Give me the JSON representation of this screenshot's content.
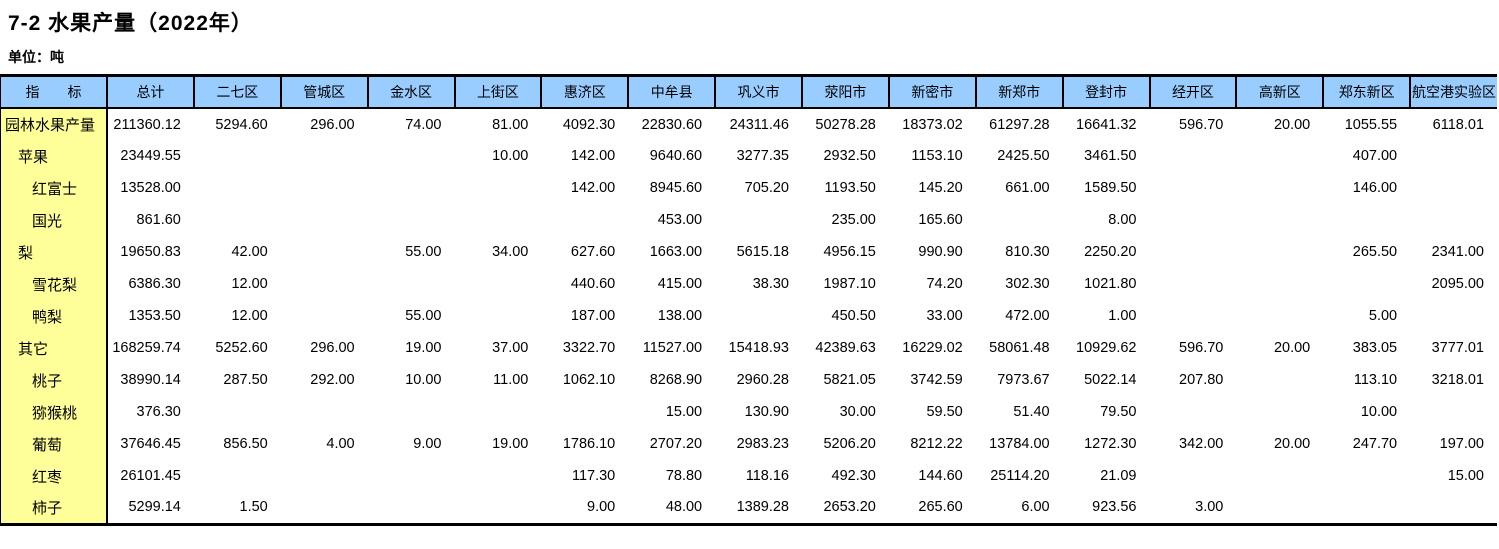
{
  "page": {
    "title": "7-2  水果产量（2022年）",
    "unit_label": "单位：吨"
  },
  "colors": {
    "header_bg": "#99CCFF",
    "label_bg": "#FFFF99",
    "border": "#000000",
    "text": "#000000"
  },
  "chart_data": {
    "type": "table",
    "title": "7-2 水果产量（2022年）",
    "unit": "吨",
    "columns": [
      "指　　标",
      "总计",
      "二七区",
      "管城区",
      "金水区",
      "上街区",
      "惠济区",
      "中牟县",
      "巩义市",
      "荥阳市",
      "新密市",
      "新郑市",
      "登封市",
      "经开区",
      "高新区",
      "郑东新区",
      "航空港实验区"
    ],
    "rows": [
      {
        "label": "园林水果产量",
        "indent": 0,
        "bold": true,
        "values": [
          "211360.12",
          "5294.60",
          "296.00",
          "74.00",
          "81.00",
          "4092.30",
          "22830.60",
          "24311.46",
          "50278.28",
          "18373.02",
          "61297.28",
          "16641.32",
          "596.70",
          "20.00",
          "1055.55",
          "6118.01"
        ]
      },
      {
        "label": "苹果",
        "indent": 1,
        "bold": false,
        "values": [
          "23449.55",
          "",
          "",
          "",
          "10.00",
          "142.00",
          "9640.60",
          "3277.35",
          "2932.50",
          "1153.10",
          "2425.50",
          "3461.50",
          "",
          "",
          "407.00",
          ""
        ]
      },
      {
        "label": "红富士",
        "indent": 2,
        "bold": false,
        "values": [
          "13528.00",
          "",
          "",
          "",
          "",
          "142.00",
          "8945.60",
          "705.20",
          "1193.50",
          "145.20",
          "661.00",
          "1589.50",
          "",
          "",
          "146.00",
          ""
        ]
      },
      {
        "label": "国光",
        "indent": 2,
        "bold": false,
        "values": [
          "861.60",
          "",
          "",
          "",
          "",
          "",
          "453.00",
          "",
          "235.00",
          "165.60",
          "",
          "8.00",
          "",
          "",
          "",
          ""
        ]
      },
      {
        "label": "梨",
        "indent": 1,
        "bold": false,
        "values": [
          "19650.83",
          "42.00",
          "",
          "55.00",
          "34.00",
          "627.60",
          "1663.00",
          "5615.18",
          "4956.15",
          "990.90",
          "810.30",
          "2250.20",
          "",
          "",
          "265.50",
          "2341.00"
        ]
      },
      {
        "label": "雪花梨",
        "indent": 2,
        "bold": false,
        "values": [
          "6386.30",
          "12.00",
          "",
          "",
          "",
          "440.60",
          "415.00",
          "38.30",
          "1987.10",
          "74.20",
          "302.30",
          "1021.80",
          "",
          "",
          "",
          "2095.00"
        ]
      },
      {
        "label": "鸭梨",
        "indent": 2,
        "bold": false,
        "values": [
          "1353.50",
          "12.00",
          "",
          "55.00",
          "",
          "187.00",
          "138.00",
          "",
          "450.50",
          "33.00",
          "472.00",
          "1.00",
          "",
          "",
          "5.00",
          ""
        ]
      },
      {
        "label": "其它",
        "indent": 1,
        "bold": false,
        "values": [
          "168259.74",
          "5252.60",
          "296.00",
          "19.00",
          "37.00",
          "3322.70",
          "11527.00",
          "15418.93",
          "42389.63",
          "16229.02",
          "58061.48",
          "10929.62",
          "596.70",
          "20.00",
          "383.05",
          "3777.01"
        ]
      },
      {
        "label": "桃子",
        "indent": 2,
        "bold": false,
        "values": [
          "38990.14",
          "287.50",
          "292.00",
          "10.00",
          "11.00",
          "1062.10",
          "8268.90",
          "2960.28",
          "5821.05",
          "3742.59",
          "7973.67",
          "5022.14",
          "207.80",
          "",
          "113.10",
          "3218.01"
        ]
      },
      {
        "label": "猕猴桃",
        "indent": 2,
        "bold": false,
        "values": [
          "376.30",
          "",
          "",
          "",
          "",
          "",
          "15.00",
          "130.90",
          "30.00",
          "59.50",
          "51.40",
          "79.50",
          "",
          "",
          "10.00",
          ""
        ]
      },
      {
        "label": "葡萄",
        "indent": 2,
        "bold": false,
        "values": [
          "37646.45",
          "856.50",
          "4.00",
          "9.00",
          "19.00",
          "1786.10",
          "2707.20",
          "2983.23",
          "5206.20",
          "8212.22",
          "13784.00",
          "1272.30",
          "342.00",
          "20.00",
          "247.70",
          "197.00"
        ]
      },
      {
        "label": "红枣",
        "indent": 2,
        "bold": false,
        "values": [
          "26101.45",
          "",
          "",
          "",
          "",
          "117.30",
          "78.80",
          "118.16",
          "492.30",
          "144.60",
          "25114.20",
          "21.09",
          "",
          "",
          "",
          "15.00"
        ]
      },
      {
        "label": "柿子",
        "indent": 2,
        "bold": false,
        "values": [
          "5299.14",
          "1.50",
          "",
          "",
          "",
          "9.00",
          "48.00",
          "1389.28",
          "2653.20",
          "265.60",
          "6.00",
          "923.56",
          "3.00",
          "",
          "",
          ""
        ]
      }
    ]
  }
}
